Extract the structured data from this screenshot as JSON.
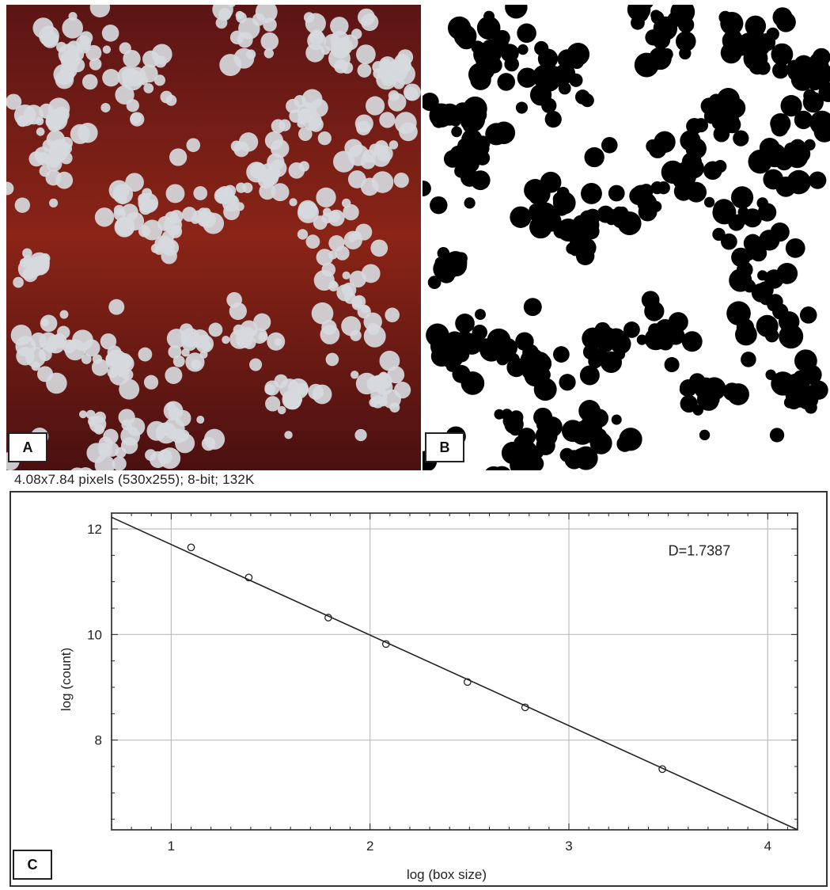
{
  "panels": {
    "a_label": "A",
    "b_label": "B",
    "c_label": "C"
  },
  "info_line": "4.08x7.84 pixels (530x255); 8-bit; 132K",
  "colors": {
    "agar": "#5a1414",
    "colony": "#d6d9dd",
    "binary_fg": "#000000",
    "binary_bg": "#ffffff",
    "plot_line": "#222222",
    "grid": "#bdbdbd"
  },
  "chart_data": {
    "type": "scatter",
    "title": "",
    "xlabel": "log (box size)",
    "ylabel": "log (count)",
    "xlim": [
      0.7,
      4.15
    ],
    "ylim": [
      6.3,
      12.3
    ],
    "xticks": [
      1,
      2,
      3,
      4
    ],
    "yticks": [
      8,
      10,
      12
    ],
    "grid": true,
    "annotation": "D=1.7387",
    "points": {
      "x": [
        1.1,
        1.39,
        1.79,
        2.08,
        2.49,
        2.78,
        3.47
      ],
      "y": [
        11.65,
        11.08,
        10.32,
        9.82,
        9.1,
        8.62,
        7.45
      ]
    },
    "fit_line": {
      "x": [
        0.7,
        4.15
      ],
      "y": [
        12.22,
        6.3
      ]
    }
  }
}
